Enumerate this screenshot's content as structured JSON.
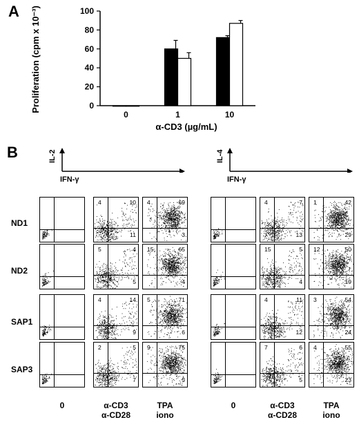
{
  "panel_a": {
    "letter": "A",
    "ylabel": "Proliferation (cpm x 10⁻³)",
    "xlabel": "α-CD3 (µg/mL)",
    "yticks": [
      "0",
      "20",
      "40",
      "60",
      "80",
      "100"
    ],
    "xticks": [
      "0",
      "1",
      "10"
    ]
  },
  "chart_data": {
    "type": "bar",
    "categories": [
      "0",
      "1",
      "10"
    ],
    "series": [
      {
        "values": [
          0,
          60,
          72
        ],
        "errors": [
          0,
          9,
          2
        ],
        "color": "#000000"
      },
      {
        "values": [
          0,
          50,
          87
        ],
        "errors": [
          0,
          6,
          3
        ],
        "color": "#ffffff"
      }
    ],
    "xlabel": "α-CD3 (µg/mL)",
    "ylabel": "Proliferation (cpm x 10⁻³)",
    "ylim": [
      0,
      100
    ]
  },
  "panel_b": {
    "letter": "B",
    "left_block": {
      "y_axis": "IL-2",
      "x_axis": "IFN-γ"
    },
    "right_block": {
      "y_axis": "IL-4",
      "x_axis": "IFN-γ"
    },
    "rows": [
      "ND1",
      "ND2",
      "SAP1",
      "SAP3"
    ],
    "columns": [
      {
        "line1": "0",
        "line2": ""
      },
      {
        "line1": "α-CD3",
        "line2": "α-CD28"
      },
      {
        "line1": "TPA",
        "line2": "iono"
      }
    ],
    "left_quadrants": [
      [
        null,
        {
          "ul": "4",
          "ur": "10",
          "lr": "11"
        },
        {
          "ul": "4",
          "ur": "69",
          "lr": "3"
        }
      ],
      [
        null,
        {
          "ul": "5",
          "ur": "4",
          "lr": "5"
        },
        {
          "ul": "15",
          "ur": "65",
          "lr": "4"
        }
      ],
      [
        null,
        {
          "ul": "4",
          "ur": "14",
          "lr": "9"
        },
        {
          "ul": "5",
          "ur": "71",
          "lr": "6"
        }
      ],
      [
        null,
        {
          "ul": "2",
          "ur": "5",
          "lr": "7"
        },
        {
          "ul": "9",
          "ur": "75",
          "lr": "5"
        }
      ]
    ],
    "right_quadrants": [
      [
        null,
        {
          "ul": "4",
          "ur": "7",
          "lr": "13"
        },
        {
          "ul": "1",
          "ur": "42",
          "lr": "29"
        }
      ],
      [
        null,
        {
          "ul": "15",
          "ur": "5",
          "lr": "4"
        },
        {
          "ul": "12",
          "ur": "50",
          "lr": "19"
        }
      ],
      [
        null,
        {
          "ul": "4",
          "ur": "11",
          "lr": "12"
        },
        {
          "ul": "3",
          "ur": "54",
          "lr": "24"
        }
      ],
      [
        null,
        {
          "ul": "7",
          "ur": "6",
          "lr": "5"
        },
        {
          "ul": "4",
          "ur": "55",
          "lr": "23"
        }
      ]
    ]
  }
}
